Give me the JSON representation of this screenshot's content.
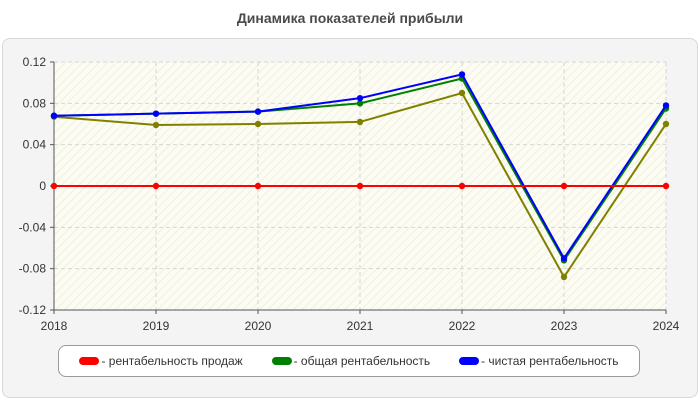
{
  "chart_data": {
    "type": "line",
    "title": "Динамика показателей прибыли",
    "xlabel": "",
    "ylabel": "",
    "categories": [
      "2018",
      "2019",
      "2020",
      "2021",
      "2022",
      "2023",
      "2024"
    ],
    "ylim": [
      -0.12,
      0.12
    ],
    "yticks": [
      "0.12",
      "0.08",
      "0.04",
      "0",
      "-0.04",
      "-0.08",
      "-0.12"
    ],
    "grid": true,
    "legend_position": "bottom",
    "series": [
      {
        "name": "- рентабельность продаж",
        "color": "#ff0000",
        "values": [
          0,
          0,
          0,
          0,
          0,
          0,
          0
        ]
      },
      {
        "name": "- общая рентабельность",
        "color": "#008000",
        "values": [
          0.068,
          0.07,
          0.072,
          0.08,
          0.104,
          -0.072,
          0.075
        ]
      },
      {
        "name": "- чистая рентабельность",
        "color": "#0000ff",
        "values": [
          0.068,
          0.07,
          0.072,
          0.085,
          0.108,
          -0.07,
          0.078
        ]
      },
      {
        "name": "",
        "color": "#808000",
        "values": [
          0.067,
          0.059,
          0.06,
          0.062,
          0.09,
          -0.088,
          0.06
        ]
      }
    ]
  }
}
